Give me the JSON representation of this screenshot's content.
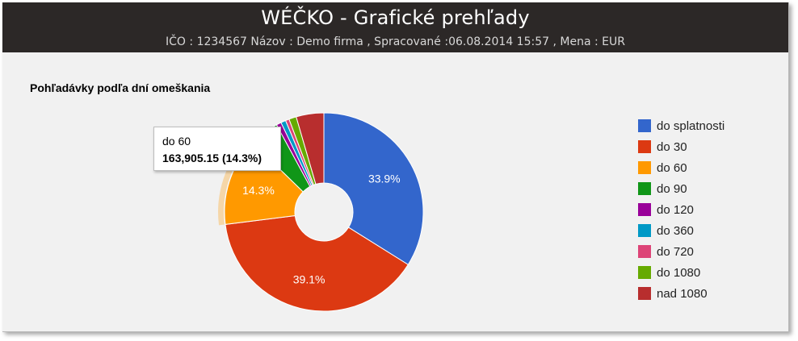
{
  "header": {
    "title": "WÉČKO - Grafické prehľady",
    "subtitle": "IČO : 1234567 Názov : Demo firma , Spracované :06.08.2014 15:57 , Mena : EUR"
  },
  "chart_data": {
    "type": "pie",
    "donut": true,
    "title": "Pohľadávky podľa dní omeškania",
    "legend_position": "right",
    "series": [
      {
        "name": "do splatnosti",
        "percent": 33.9,
        "color": "#3366cc",
        "label": "33.9%"
      },
      {
        "name": "do 30",
        "percent": 39.1,
        "color": "#dc3912",
        "label": "39.1%"
      },
      {
        "name": "do 60",
        "percent": 14.3,
        "value": "163,905.15",
        "color": "#ff9900",
        "label": "14.3%"
      },
      {
        "name": "do 90",
        "percent": 4.8,
        "color": "#109618",
        "label": ""
      },
      {
        "name": "do 120",
        "percent": 0.8,
        "color": "#990099",
        "label": ""
      },
      {
        "name": "do 360",
        "percent": 0.8,
        "color": "#0099c6",
        "label": ""
      },
      {
        "name": "do 720",
        "percent": 0.6,
        "color": "#dd4477",
        "label": ""
      },
      {
        "name": "do 1080",
        "percent": 1.2,
        "color": "#66aa00",
        "label": ""
      },
      {
        "name": "nad 1080",
        "percent": 4.5,
        "color": "#b82e2e",
        "label": ""
      }
    ],
    "highlighted": "do 60"
  },
  "tooltip": {
    "name": "do 60",
    "value_text": "163,905.15 (14.3%)"
  }
}
